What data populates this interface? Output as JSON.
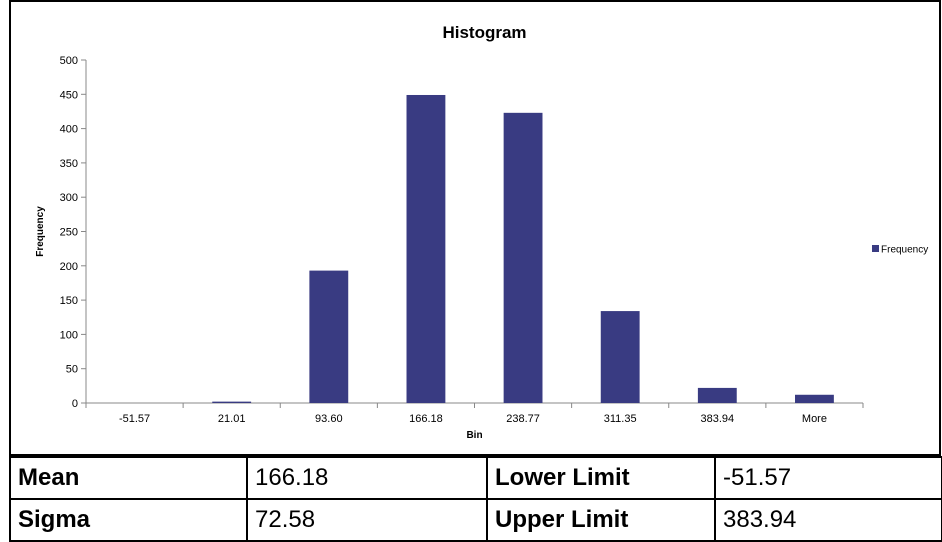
{
  "chart_data": {
    "type": "bar",
    "title": "Histogram",
    "xlabel": "Bin",
    "ylabel": "Frequency",
    "categories": [
      "-51.57",
      "21.01",
      "93.60",
      "166.18",
      "238.77",
      "311.35",
      "383.94",
      "More"
    ],
    "series": [
      {
        "name": "Frequency",
        "values": [
          0,
          2,
          193,
          449,
          423,
          134,
          22,
          12
        ]
      }
    ],
    "ylim": [
      0,
      500
    ],
    "yticks": [
      0,
      50,
      100,
      150,
      200,
      250,
      300,
      350,
      400,
      450,
      500
    ],
    "grid": false,
    "legend_position": "right",
    "bar_color": "#393b82"
  },
  "stats": {
    "mean_label": "Mean",
    "mean_value": "166.18",
    "lower_label": "Lower Limit",
    "lower_value": "-51.57",
    "sigma_label": "Sigma",
    "sigma_value": "72.58",
    "upper_label": "Upper Limit",
    "upper_value": "383.94"
  }
}
